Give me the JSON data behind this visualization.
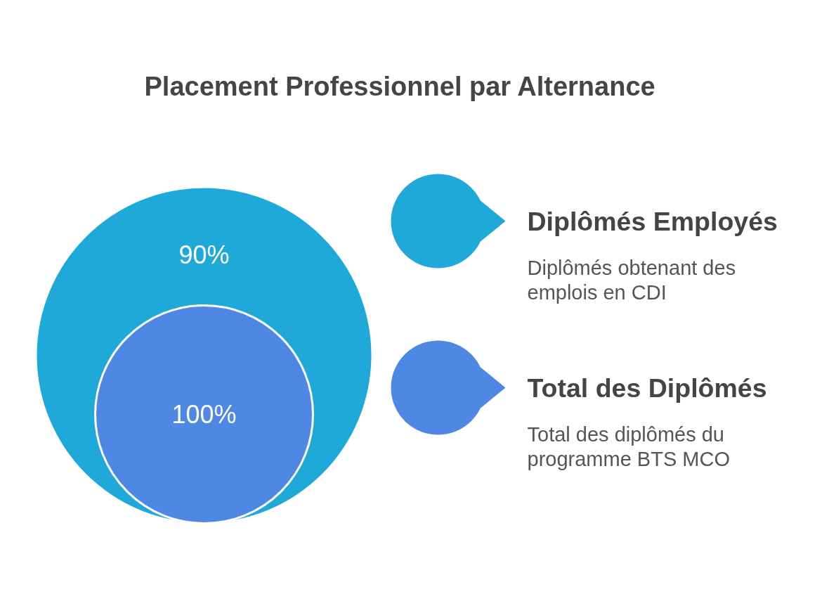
{
  "chart_data": {
    "type": "other",
    "title": "Placement Professionnel par Alternance",
    "categories": [
      "Diplômés Employés",
      "Total des Diplômés"
    ],
    "values": [
      90,
      100
    ],
    "value_labels": [
      "90%",
      "100%"
    ],
    "colors": [
      "#1fa9d8",
      "#4f88e4"
    ],
    "annotations": [
      "Diplômés obtenant des emplois en CDI",
      "Total des diplômés du programme BTS MCO"
    ]
  }
}
